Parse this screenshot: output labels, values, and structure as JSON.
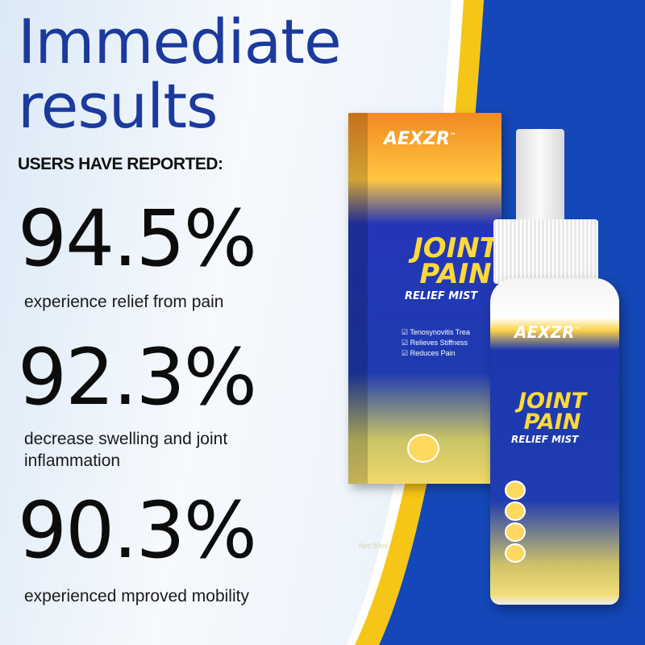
{
  "headline": {
    "line1": "Immediate",
    "line2": "results"
  },
  "subheading": "USERS HAVE REPORTED:",
  "stats": [
    {
      "value": "94.5%",
      "caption": "experience relief from pain"
    },
    {
      "value": "92.3%",
      "caption_line1": "decrease swelling and joint",
      "caption_line2": "inflammation"
    },
    {
      "value": "90.3%",
      "caption": "experienced mproved mobility"
    }
  ],
  "product": {
    "brand": "AEXZR",
    "trademark": "™",
    "name_line1": "JOINT",
    "name_line2": "PAIN",
    "name_line3": "RELIEF MIST",
    "features": [
      "Tenosynovitis Trea",
      "Relieves Stiffness",
      "Reduces Pain"
    ],
    "net": "Net:30ml"
  },
  "colors": {
    "headline": "#1b3a9c",
    "band_blue": "#1448b8",
    "band_yellow": "#f5c518"
  }
}
